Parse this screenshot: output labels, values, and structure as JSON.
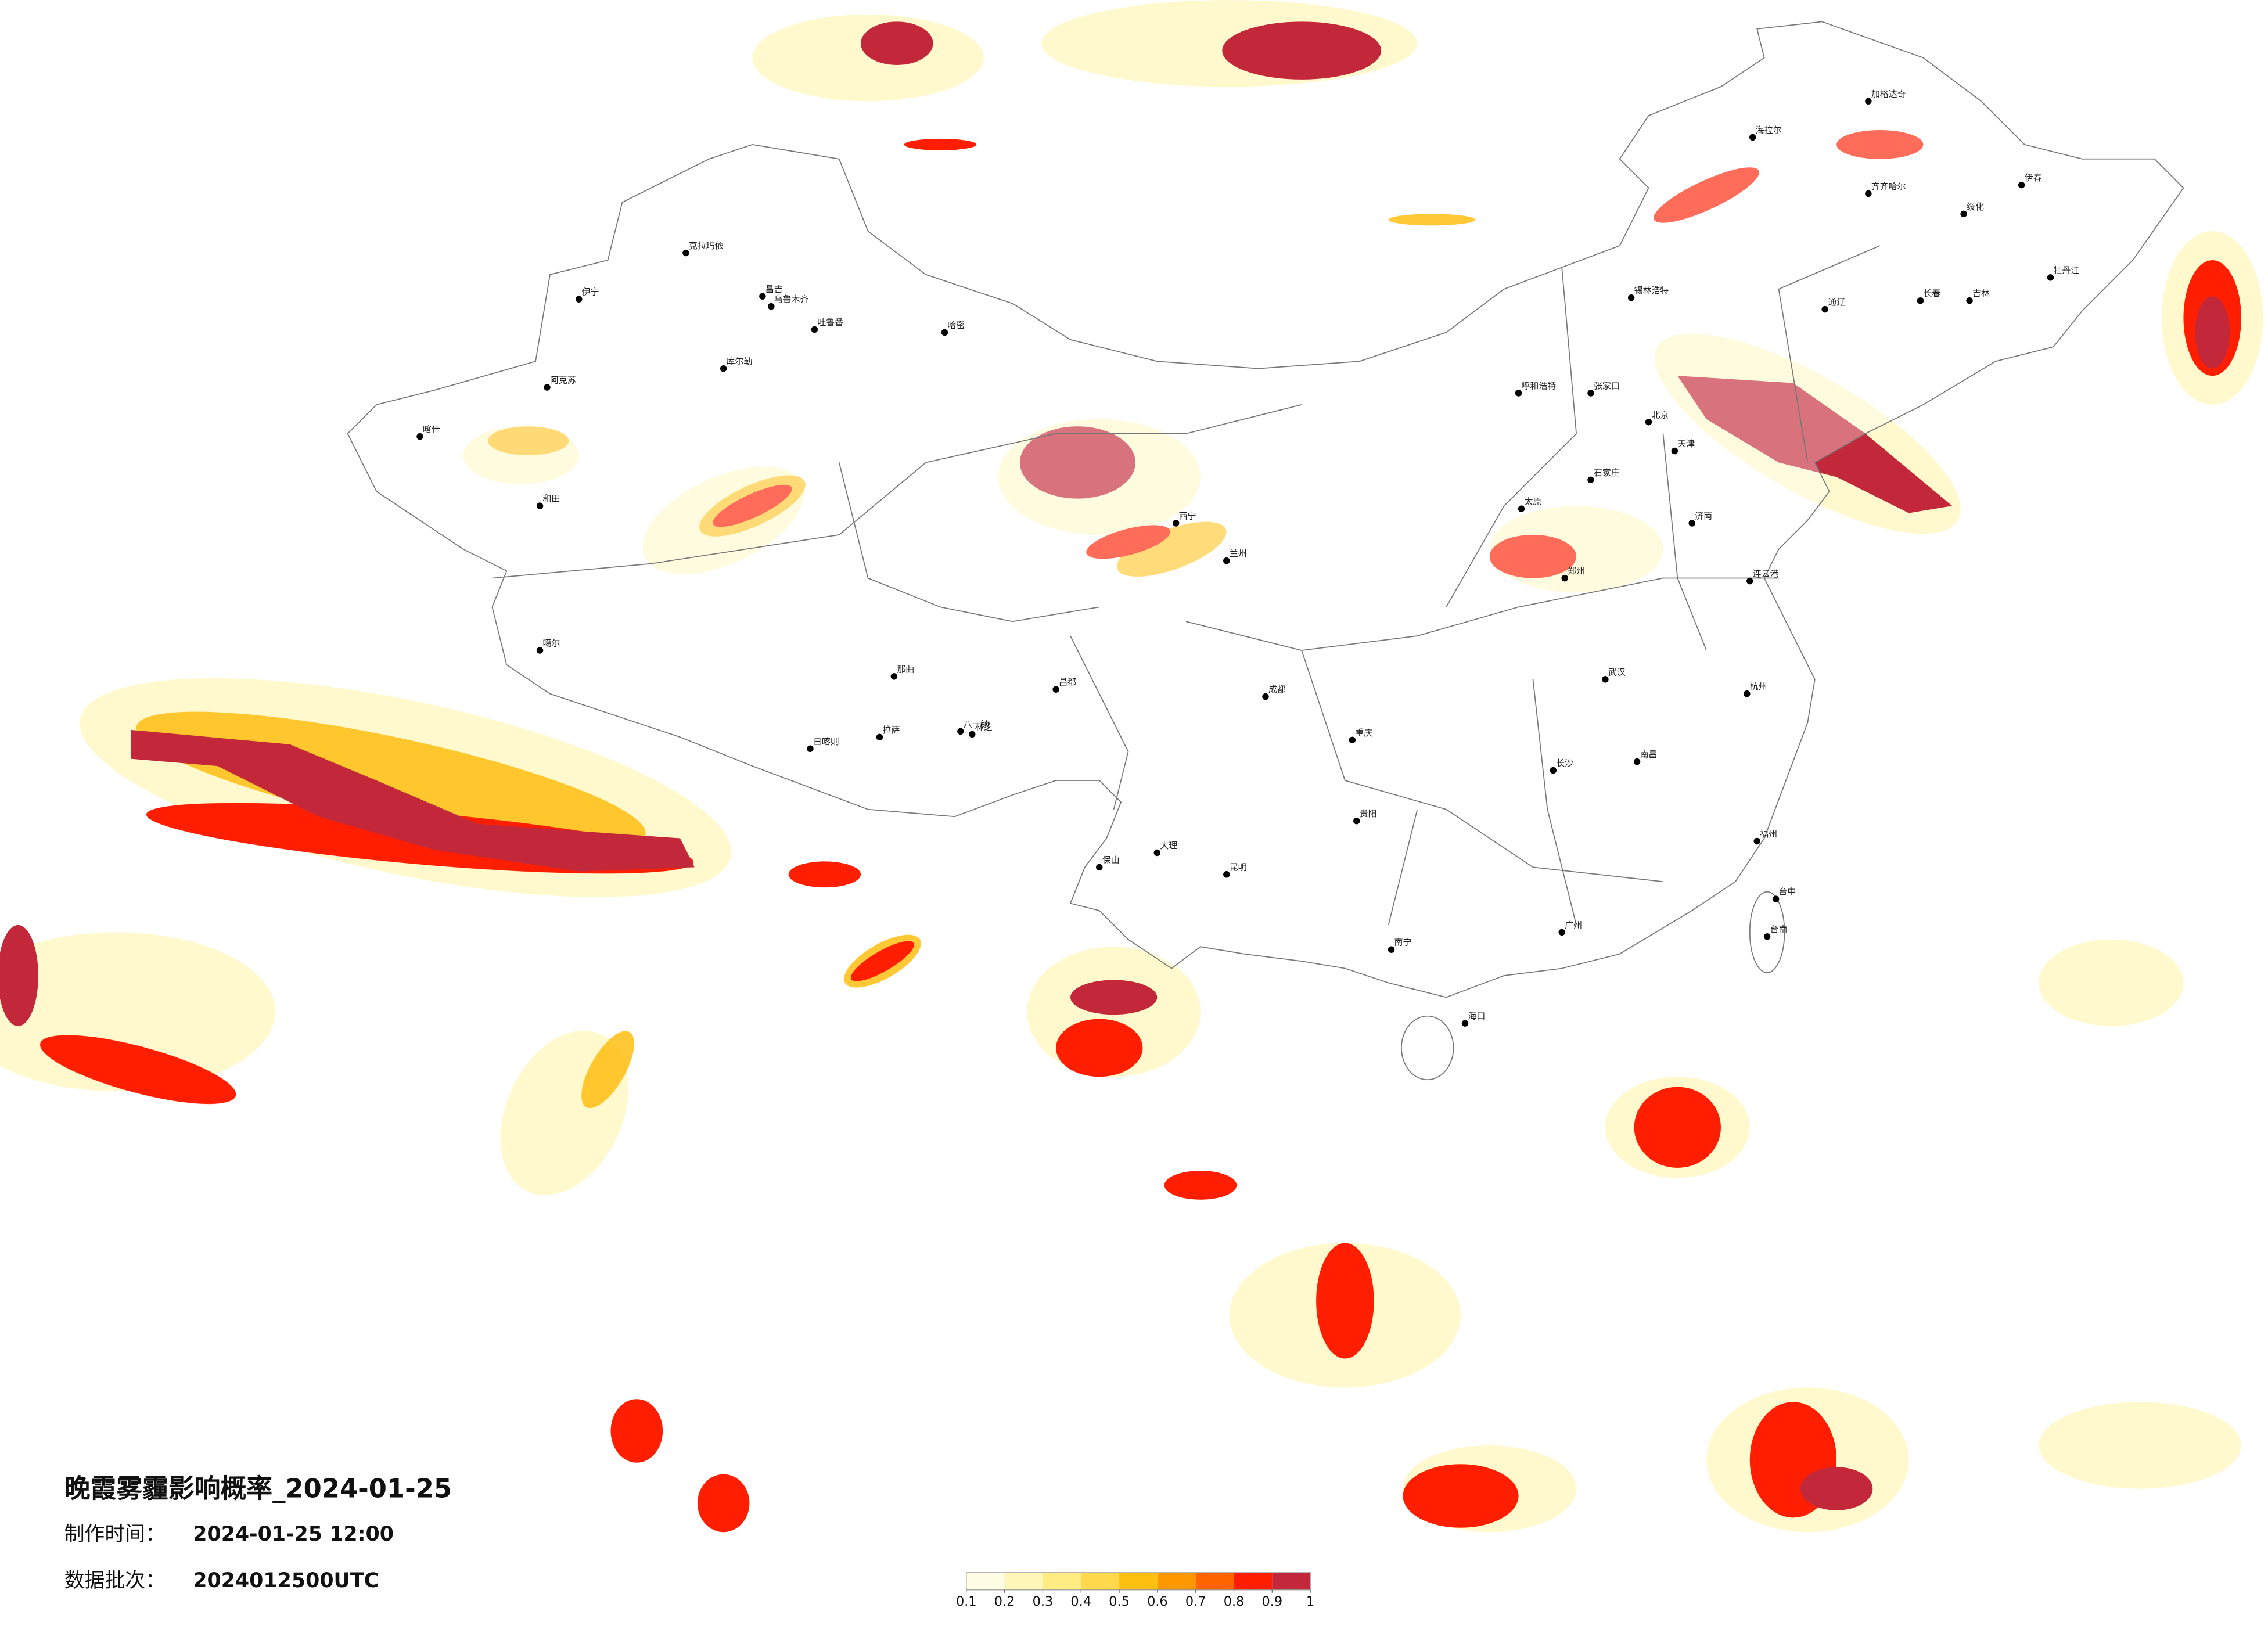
{
  "header": {
    "title": "晚霞雾霾影响概率_2024-01-25",
    "made_label": "制作时间：",
    "made_value": "2024-01-25 12:00",
    "batch_label": "数据批次：",
    "batch_value": "2024012500UTC"
  },
  "legend": {
    "ticks": [
      0.1,
      0.2,
      0.3,
      0.4,
      0.5,
      0.6,
      0.7,
      0.8,
      0.9,
      1
    ],
    "colors": [
      "#fffde3",
      "#fff6b8",
      "#ffec82",
      "#ffd84c",
      "#ffbf10",
      "#ff9800",
      "#ff6400",
      "#ff1e00",
      "#c3283a"
    ]
  },
  "cities": [
    "克拉玛依",
    "伊宁",
    "昌吉",
    "乌鲁木齐",
    "吐鲁番",
    "哈密",
    "库尔勒",
    "阿克苏",
    "喀什",
    "和田",
    "噶尔",
    "那曲",
    "拉萨",
    "日喀则",
    "林芝",
    "八一镇",
    "昌都",
    "西宁",
    "兰州",
    "呼和浩特",
    "张家口",
    "北京",
    "天津",
    "石家庄",
    "太原",
    "郑州",
    "济南",
    "连云港",
    "成都",
    "重庆",
    "贵阳",
    "昆明",
    "大理",
    "保山",
    "南宁",
    "广州",
    "海口",
    "长沙",
    "南昌",
    "杭州",
    "福州",
    "武汉",
    "台中",
    "台南",
    "齐齐哈尔",
    "伊春",
    "长春",
    "吉林",
    "海拉尔",
    "加格达奇",
    "通辽",
    "锡林浩特",
    "牡丹江",
    "绥化"
  ]
}
